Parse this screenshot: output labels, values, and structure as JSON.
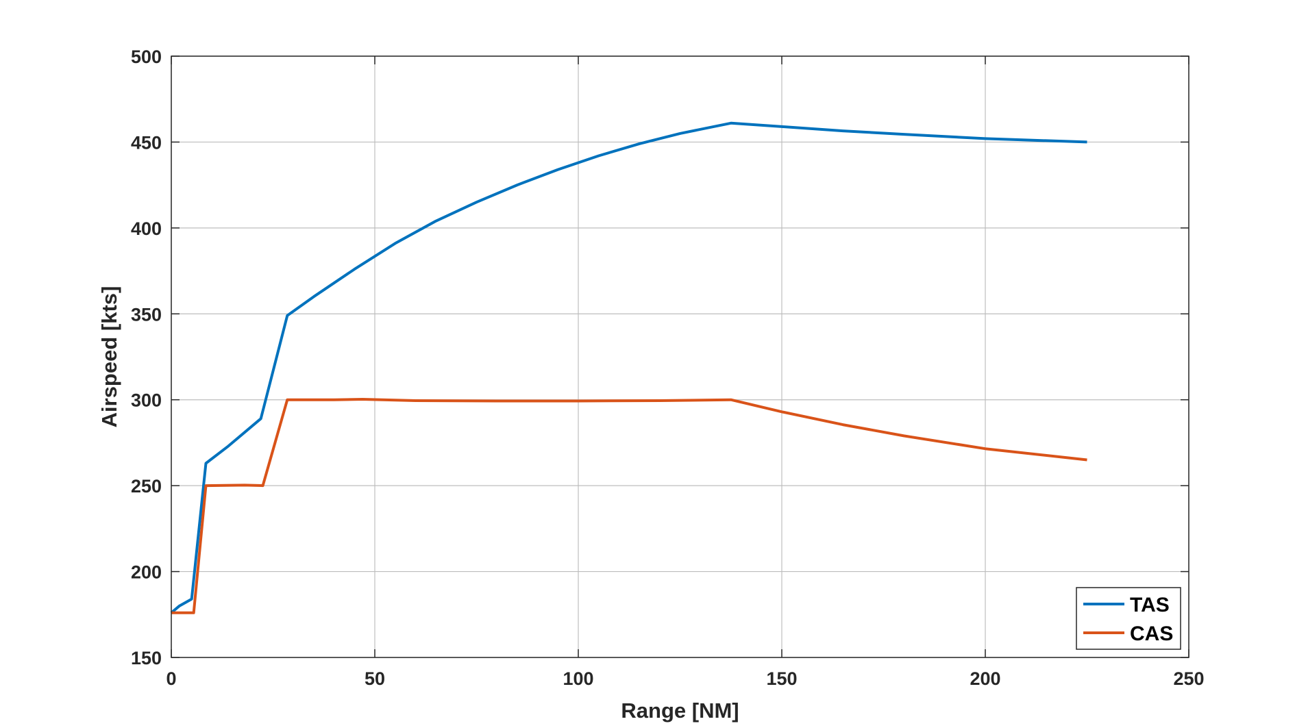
{
  "chart_data": {
    "type": "line",
    "xlabel": "Range [NM]",
    "ylabel": "Airspeed [kts]",
    "xlim": [
      0,
      250
    ],
    "ylim": [
      150,
      500
    ],
    "xticks": [
      0,
      50,
      100,
      150,
      200,
      250
    ],
    "yticks": [
      150,
      200,
      250,
      300,
      350,
      400,
      450,
      500
    ],
    "grid": true,
    "legend_position": "bottom-right",
    "series": [
      {
        "name": "TAS",
        "color": "#0072BD",
        "x": [
          0,
          2,
          5,
          8.5,
          14,
          22,
          28.5,
          35,
          45,
          55,
          65,
          75,
          85,
          95,
          105,
          115,
          125,
          137.5,
          150,
          165,
          180,
          200,
          225
        ],
        "y": [
          176,
          180,
          184,
          263,
          273,
          289,
          349,
          360,
          376,
          391,
          404,
          415,
          425,
          434,
          442,
          449,
          455,
          461,
          459,
          456.5,
          454.5,
          452,
          450
        ]
      },
      {
        "name": "CAS",
        "color": "#D95319",
        "x": [
          0,
          5.5,
          8.5,
          18,
          22.5,
          28.5,
          40,
          47,
          60,
          80,
          100,
          120,
          137.5,
          150,
          165,
          180,
          200,
          225
        ],
        "y": [
          176,
          176,
          250,
          250.3,
          250,
          300,
          300,
          300.3,
          299.5,
          299.3,
          299.3,
          299.5,
          300,
          293,
          285.5,
          279,
          271.5,
          265
        ]
      }
    ]
  }
}
